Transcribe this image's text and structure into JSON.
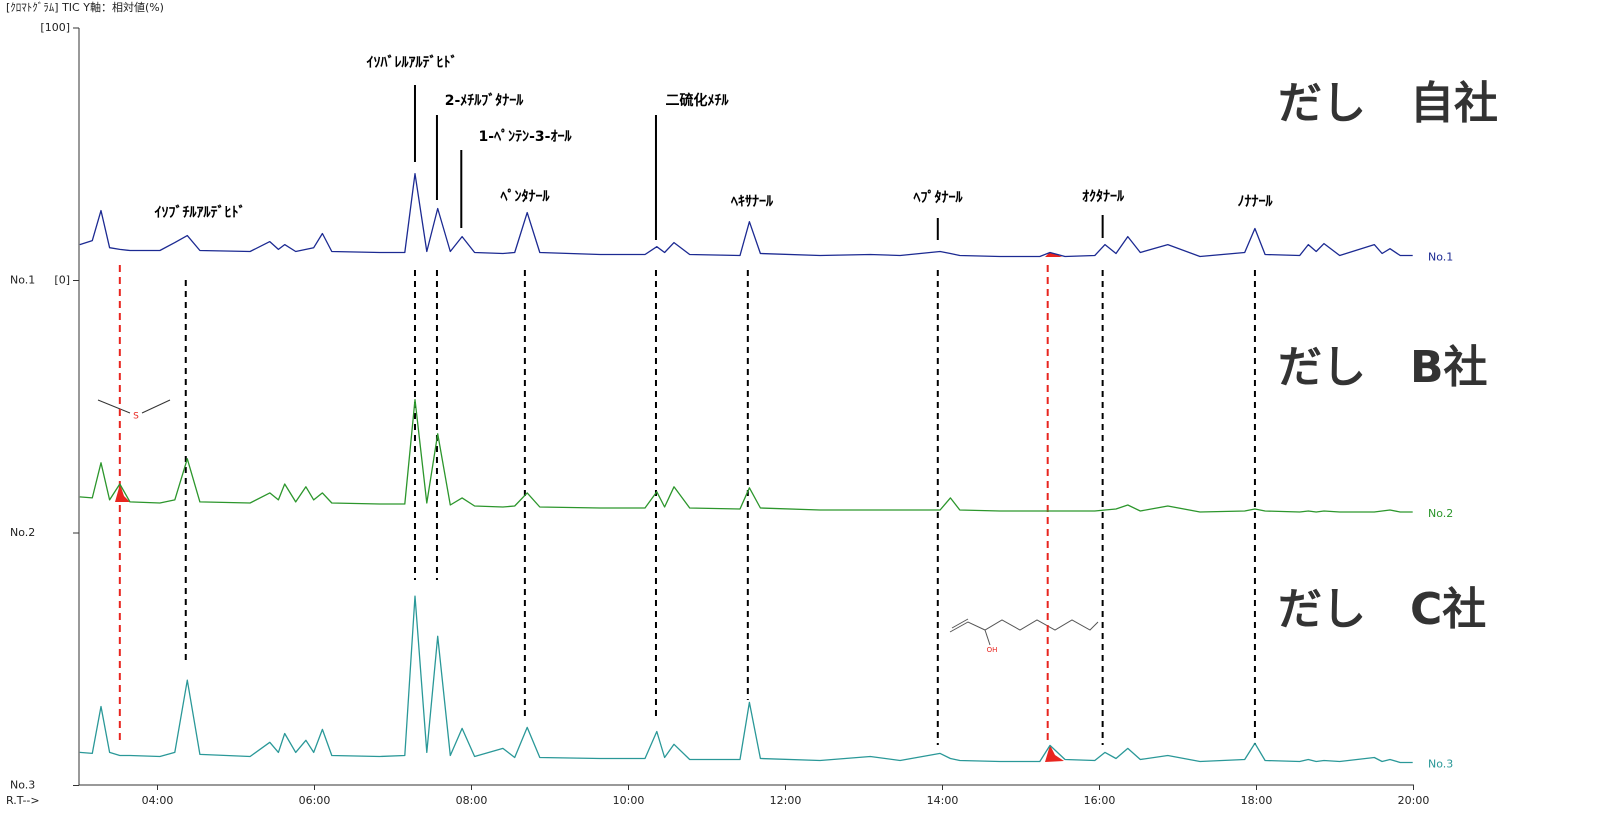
{
  "chart_data": {
    "type": "line",
    "title": "[ｸﾛﾏﾄｸﾞﾗﾑ]  TIC  Y軸：相対値(%)",
    "x_label": "R.T-->",
    "xlim": [
      3,
      20
    ],
    "xticks": [
      {
        "value": 4,
        "label": "04:00"
      },
      {
        "value": 6,
        "label": "06:00"
      },
      {
        "value": 8,
        "label": "08:00"
      },
      {
        "value": 10,
        "label": "10:00"
      },
      {
        "value": 12,
        "label": "12:00"
      },
      {
        "value": 14,
        "label": "14:00"
      },
      {
        "value": 16,
        "label": "16:00"
      },
      {
        "value": 18,
        "label": "18:00"
      },
      {
        "value": 20,
        "label": "20:00"
      }
    ],
    "ylim": [
      0,
      100
    ],
    "yticks": [
      {
        "value": 100,
        "label": "[100]"
      },
      {
        "value": 0,
        "label": "[0]"
      }
    ],
    "x": [
      3.01,
      3.17,
      3.28,
      3.39,
      3.52,
      3.65,
      4.03,
      4.22,
      4.38,
      4.54,
      5.18,
      5.43,
      5.54,
      5.62,
      5.76,
      5.89,
      5.99,
      6.1,
      6.22,
      6.83,
      7.15,
      7.28,
      7.43,
      7.57,
      7.73,
      7.88,
      8.04,
      8.4,
      8.55,
      8.71,
      8.87,
      9.64,
      10.21,
      10.36,
      10.46,
      10.58,
      10.78,
      11.42,
      11.54,
      11.68,
      12.44,
      13.08,
      13.46,
      13.97,
      14.1,
      14.22,
      14.73,
      15.24,
      15.37,
      15.56,
      15.94,
      16.07,
      16.21,
      16.36,
      16.52,
      16.87,
      17.28,
      17.85,
      17.98,
      18.11,
      18.55,
      18.66,
      18.76,
      18.86,
      19.06,
      19.5,
      19.6,
      19.7,
      19.83,
      19.99
    ],
    "series": [
      {
        "name": "No.1",
        "color": "#1c2a92",
        "values": [
          14.2,
          15.8,
          27.7,
          13.0,
          12.3,
          11.9,
          11.9,
          15.0,
          17.8,
          11.9,
          11.5,
          15.4,
          12.3,
          14.2,
          11.5,
          12.3,
          13.0,
          18.6,
          11.5,
          11.1,
          11.1,
          42.3,
          11.5,
          28.5,
          11.5,
          17.4,
          11.1,
          10.7,
          11.1,
          26.9,
          11.1,
          10.3,
          10.3,
          13.4,
          11.1,
          15.0,
          10.3,
          9.9,
          23.3,
          10.7,
          9.9,
          10.3,
          9.9,
          11.5,
          10.7,
          9.9,
          9.5,
          9.5,
          11.1,
          9.5,
          9.9,
          14.2,
          10.7,
          17.4,
          11.1,
          14.2,
          9.5,
          11.1,
          20.6,
          10.3,
          9.9,
          14.2,
          11.5,
          14.6,
          9.9,
          14.2,
          10.7,
          12.6,
          9.9,
          9.9
        ]
      },
      {
        "name": "No.2",
        "color": "#2c962c",
        "values": [
          14.3,
          13.9,
          27.8,
          13.1,
          19.4,
          12.3,
          11.9,
          13.1,
          29.4,
          12.3,
          11.9,
          15.9,
          13.1,
          19.4,
          12.3,
          18.3,
          13.1,
          15.9,
          11.9,
          11.5,
          11.5,
          52.8,
          11.9,
          39.3,
          11.1,
          13.9,
          10.7,
          10.3,
          10.7,
          15.9,
          10.3,
          9.9,
          9.9,
          16.3,
          10.3,
          18.3,
          9.9,
          9.5,
          17.9,
          9.9,
          9.1,
          9.1,
          9.1,
          9.1,
          13.9,
          9.1,
          8.7,
          8.7,
          8.7,
          8.7,
          8.7,
          9.1,
          9.5,
          11.1,
          8.7,
          10.7,
          8.3,
          8.7,
          9.5,
          8.7,
          8.3,
          8.7,
          8.3,
          8.7,
          8.3,
          8.3,
          8.7,
          9.1,
          8.3,
          8.3
        ]
      },
      {
        "name": "No.3",
        "color": "#2a9898",
        "values": [
          13.1,
          12.7,
          31.3,
          13.1,
          11.9,
          11.9,
          11.5,
          13.1,
          41.7,
          12.3,
          11.5,
          17.1,
          13.1,
          20.6,
          13.1,
          17.9,
          13.1,
          22.2,
          11.9,
          11.5,
          11.9,
          75.0,
          13.1,
          59.1,
          11.9,
          22.6,
          11.5,
          14.7,
          11.1,
          23.0,
          11.1,
          10.7,
          10.7,
          21.4,
          11.1,
          16.3,
          10.3,
          10.3,
          32.9,
          10.7,
          9.9,
          11.5,
          9.9,
          12.7,
          10.7,
          9.9,
          9.5,
          9.5,
          15.9,
          10.3,
          9.9,
          13.1,
          10.7,
          14.7,
          10.3,
          11.9,
          9.5,
          10.3,
          16.7,
          9.9,
          9.5,
          10.3,
          9.5,
          9.9,
          9.5,
          11.1,
          9.5,
          10.3,
          9.1,
          9.1
        ]
      }
    ],
    "panel_labels": [
      "だし　自社",
      "だし　B社",
      "だし　C社"
    ],
    "annotations": [
      {
        "label": "ｲｿﾌﾞﾁﾙｱﾙﾃﾞﾋﾄﾞ",
        "x": 4.36
      },
      {
        "label": "ｲｿﾊﾞﾚﾙｱﾙﾃﾞﾋﾄﾞ",
        "x": 7.28
      },
      {
        "label": "2-ﾒﾁﾙﾌﾞﾀﾅｰﾙ",
        "x": 7.56
      },
      {
        "label": "1-ﾍﾟﾝﾃﾝ-3-ｵｰﾙ",
        "x": 7.87
      },
      {
        "label": "ﾍﾟﾝﾀﾅｰﾙ",
        "x": 8.68
      },
      {
        "label": "二硫化ﾒﾁﾙ",
        "x": 10.35
      },
      {
        "label": "ﾍｷｻﾅｰﾙ",
        "x": 11.52
      },
      {
        "label": "ﾍﾌﾟﾀﾅｰﾙ",
        "x": 13.94
      },
      {
        "label": "ｵｸﾀﾅｰﾙ",
        "x": 16.04
      },
      {
        "label": "ﾉﾅﾅｰﾙ",
        "x": 17.98
      }
    ],
    "highlight_x": [
      3.52,
      15.34
    ],
    "highlight_color": "#e8251f"
  }
}
